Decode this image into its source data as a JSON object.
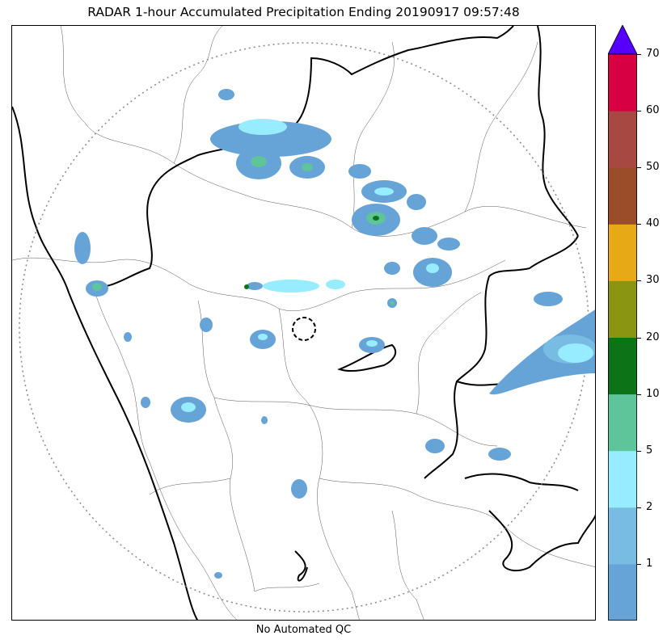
{
  "title": "RADAR 1-hour Accumulated Precipitation Ending 20190917 09:57:48",
  "footer_note": "No Automated QC",
  "colorbar": {
    "levels": [
      {
        "label": "",
        "color": "#66a3d6"
      },
      {
        "label": "1",
        "color": "#78bce3"
      },
      {
        "label": "2",
        "color": "#97ecff"
      },
      {
        "label": "5",
        "color": "#5ec49a"
      },
      {
        "label": "10",
        "color": "#0d7317"
      },
      {
        "label": "20",
        "color": "#8a9611"
      },
      {
        "label": "30",
        "color": "#e8a917"
      },
      {
        "label": "40",
        "color": "#9b4d29"
      },
      {
        "label": "50",
        "color": "#a84842"
      },
      {
        "label": "60",
        "color": "#d60042"
      },
      {
        "label": "70",
        "color": "#5500ff"
      }
    ],
    "extend_color": "#5500ff"
  },
  "map": {
    "range_ring": "dotted",
    "radar_site_marker": "dashed-circle"
  }
}
